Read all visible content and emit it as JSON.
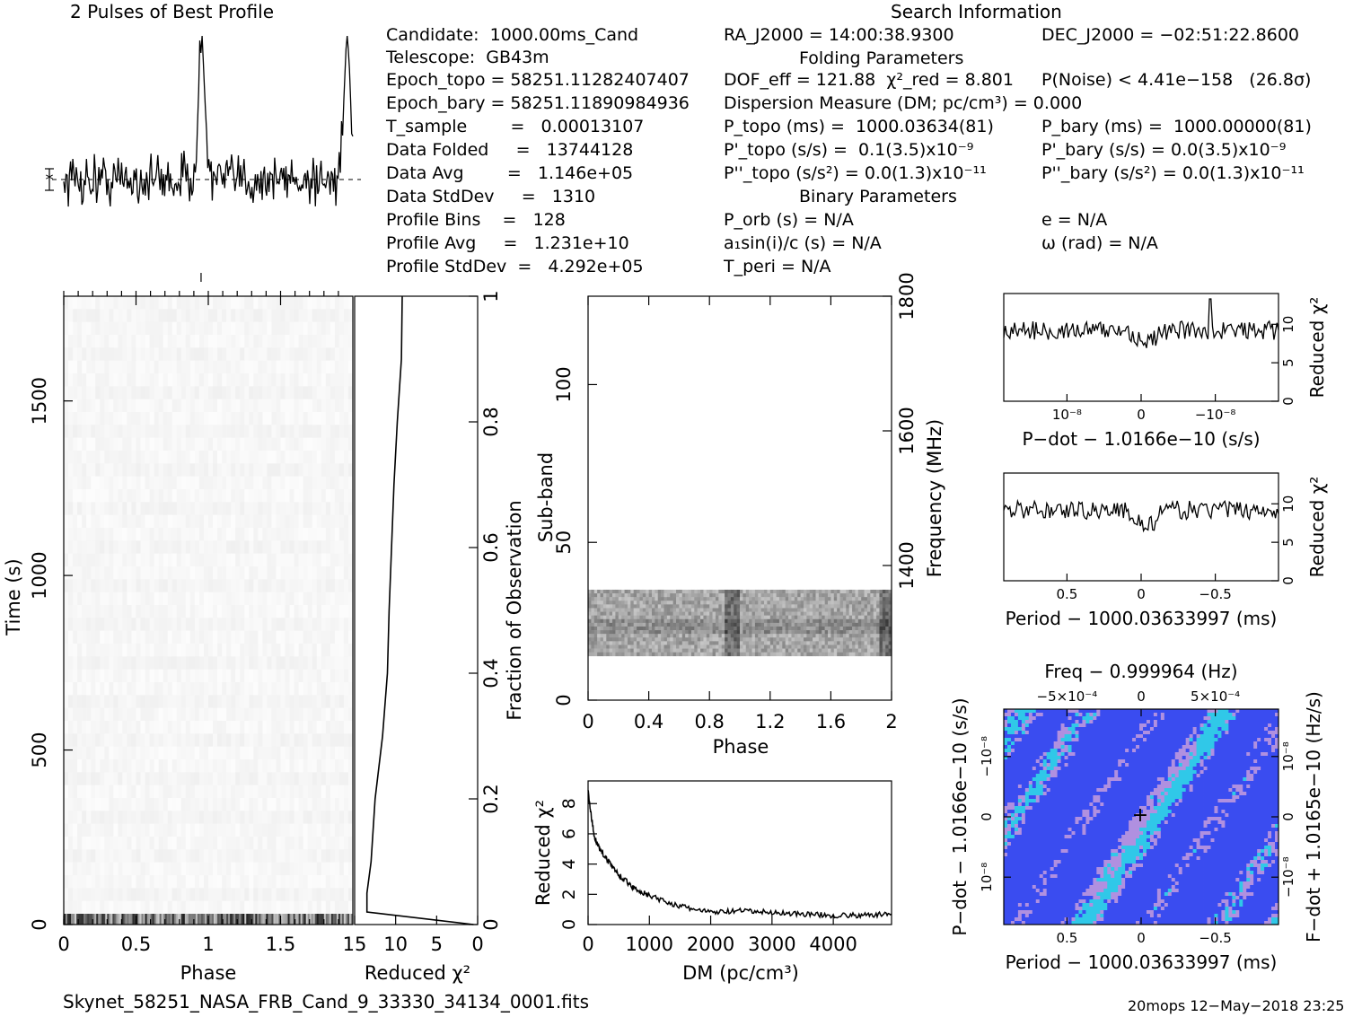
{
  "header": {
    "profile_title": "2 Pulses of Best Profile",
    "search_title": "Search Information",
    "folding_title": "Folding Parameters",
    "binary_title": "Binary Parameters"
  },
  "info": {
    "col1": [
      "Candidate:  1000.00ms_Cand",
      "Telescope:  GB43m",
      "Epoch_topo = 58251.11282407407",
      "Epoch_bary = 58251.11890984936",
      "T_sample        =   0.00013107",
      "Data Folded     =   13744128",
      "Data Avg        =   1.146e+05",
      "Data StdDev     =   1310",
      "Profile Bins    =   128",
      "Profile Avg     =   1.231e+10",
      "Profile StdDev  =   4.292e+05"
    ],
    "col2": [
      "RA_J2000 = 14:00:38.9300",
      "DOF_eff = 121.88  χ²_red = 8.801",
      "Dispersion Measure (DM; pc/cm³) = 0.000",
      "P_topo (ms) =  1000.03634(81)",
      "P'_topo (s/s) =  0.1(3.5)x10⁻⁹",
      "P''_topo (s/s²) = 0.0(1.3)x10⁻¹¹",
      "P_orb (s) = N/A",
      "a₁sin(i)/c (s) = N/A",
      "T_peri = N/A"
    ],
    "col3": [
      "DEC_J2000 = −02:51:22.8600",
      "P(Noise) < 4.41e−158   (26.8σ)",
      "P_bary (ms) =  1000.00000(81)",
      "P'_bary (s/s) = 0.0(3.5)x10⁻⁹",
      "P''_bary (s/s²) = 0.0(1.3)x10⁻¹¹",
      "e = N/A",
      "ω (rad) = N/A"
    ]
  },
  "footer": {
    "filename": "Skynet_58251_NASA_FRB_Cand_9_33330_34134_0001.fits",
    "stamp": "20mops 12−May−2018 23:25"
  },
  "chart_data": [
    {
      "type": "line",
      "name": "profile",
      "title": "2 Pulses of Best Profile",
      "x_range": [
        0,
        2
      ],
      "peaks_at_phase": [
        0.95,
        1.95
      ],
      "bins": 128
    },
    {
      "type": "heatmap",
      "name": "time-phase",
      "xlabel": "Phase",
      "ylabel": "Time (s)",
      "xlim": [
        0,
        2
      ],
      "ylim": [
        0,
        1800
      ],
      "x_ticks": [
        "0",
        "0.5",
        "1",
        "1.5"
      ],
      "y_ticks": [
        "0",
        "500",
        "1000",
        "1500"
      ]
    },
    {
      "type": "line",
      "name": "reduced-chi2-vs-fraction",
      "xlabel": "Reduced χ²",
      "ylabel": "Fraction of Observation",
      "xlim": [
        15,
        0
      ],
      "ylim": [
        0,
        1
      ],
      "x_ticks": [
        "15",
        "10",
        "5",
        "0"
      ],
      "y_ticks": [
        "0",
        "0.2",
        "0.4",
        "0.6",
        "0.8",
        "1"
      ],
      "fraction": [
        0,
        0.02,
        0.05,
        0.1,
        0.2,
        0.3,
        0.4,
        0.5,
        0.6,
        0.7,
        0.8,
        0.9,
        1.0
      ],
      "reduced_chi2": [
        0.5,
        13.5,
        13.5,
        13.0,
        12.5,
        11.6,
        11.0,
        10.8,
        10.5,
        10.2,
        9.8,
        9.3,
        9.2
      ]
    },
    {
      "type": "heatmap",
      "name": "subband-phase",
      "xlabel": "Phase",
      "ylabel": "Sub-band",
      "y2label": "Frequency (MHz)",
      "xlim": [
        0,
        2
      ],
      "ylim": [
        0,
        128
      ],
      "y2lim": [
        1200,
        1800
      ],
      "x_ticks": [
        "0",
        "0.4",
        "0.8",
        "1.2",
        "1.6",
        "2"
      ],
      "y_ticks": [
        "0",
        "50",
        "100"
      ],
      "y2_ticks": [
        "1400",
        "1600",
        "1800"
      ],
      "band_subbands": [
        14,
        35
      ]
    },
    {
      "type": "line",
      "name": "dm-curve",
      "xlabel": "DM (pc/cm³)",
      "ylabel": "Reduced χ²",
      "xlim": [
        0,
        4950
      ],
      "ylim": [
        0,
        9.5
      ],
      "x_ticks": [
        "0",
        "1000",
        "2000",
        "3000",
        "4000"
      ],
      "y_ticks": [
        "0",
        "2",
        "4",
        "6",
        "8"
      ],
      "x": [
        0,
        100,
        250,
        500,
        750,
        1000,
        1500,
        2000,
        2500,
        3000,
        3500,
        4000,
        4500,
        4950
      ],
      "y": [
        8.8,
        5.8,
        4.6,
        3.3,
        2.4,
        1.9,
        1.2,
        0.8,
        0.9,
        0.8,
        0.7,
        0.6,
        0.6,
        0.7
      ]
    },
    {
      "type": "line",
      "name": "pdot-chi2",
      "xlabel": "P−dot − 1.0166e−10 (s/s)",
      "ylabel": "Reduced χ²",
      "ylim": [
        0,
        14
      ],
      "x_ticks": [
        "10⁻⁸",
        "0",
        "−10⁻⁸"
      ],
      "y_ticks": [
        "0",
        "5",
        "10"
      ]
    },
    {
      "type": "line",
      "name": "period-chi2",
      "xlabel": "Period − 1000.03633997 (ms)",
      "ylabel": "Reduced χ²",
      "ylim": [
        0,
        14
      ],
      "x_ticks": [
        "0.5",
        "0",
        "−0.5"
      ],
      "y_ticks": [
        "0",
        "5",
        "10"
      ]
    },
    {
      "type": "heatmap",
      "name": "period-pdot",
      "title": "Freq − 0.999964 (Hz)",
      "xlabel": "Period − 1000.03633997 (ms)",
      "ylabel": "P−dot − 1.0166e−10 (s/s)",
      "y2label": "F−dot + 1.0165e−10 (Hz/s)",
      "x_ticks": [
        "0.5",
        "0",
        "−0.5"
      ],
      "top_ticks": [
        "−5×10⁻⁴",
        "0",
        "5×10⁻⁴"
      ],
      "y_ticks": [
        "−10⁻⁸",
        "0",
        "10⁻⁸"
      ],
      "y2_ticks": [
        "10⁻⁸",
        "0",
        "−10⁻⁸"
      ],
      "colors": [
        "#3a4cf0",
        "#30c8e8",
        "#b090e0"
      ]
    }
  ]
}
